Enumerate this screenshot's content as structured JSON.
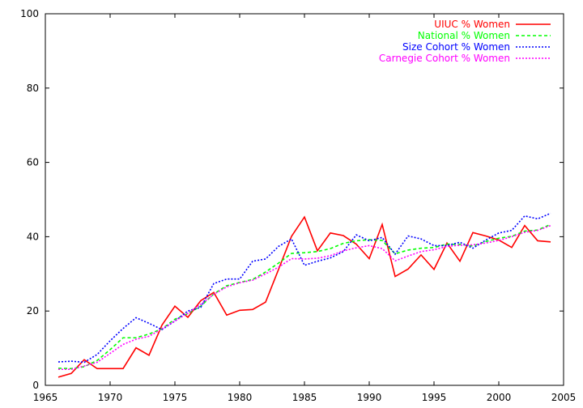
{
  "chart_data": {
    "type": "line",
    "title": "",
    "xlabel": "",
    "ylabel": "",
    "xlim": [
      1965,
      2005
    ],
    "ylim": [
      0,
      100
    ],
    "xticks": [
      "1965",
      "1970",
      "1975",
      "1980",
      "1985",
      "1990",
      "1995",
      "2000",
      "2005"
    ],
    "yticks": [
      "0",
      "20",
      "40",
      "60",
      "80",
      "100"
    ],
    "grid": false,
    "legend_position": "top-right",
    "x": [
      1966,
      1967,
      1968,
      1969,
      1970,
      1971,
      1972,
      1973,
      1974,
      1975,
      1976,
      1977,
      1978,
      1979,
      1980,
      1981,
      1982,
      1983,
      1984,
      1985,
      1986,
      1987,
      1988,
      1989,
      1990,
      1991,
      1992,
      1993,
      1994,
      1995,
      1996,
      1997,
      1998,
      1999,
      2000,
      2001,
      2002,
      2003,
      2004
    ],
    "series": [
      {
        "name": "UIUC % Women",
        "color": "#ff0000",
        "dash": "solid",
        "values": [
          2.2,
          3.2,
          6.9,
          4.5,
          4.5,
          4.5,
          10.1,
          8.1,
          16.2,
          21.3,
          18.3,
          22.8,
          25.0,
          18.9,
          20.2,
          20.4,
          22.4,
          31.2,
          40.1,
          45.3,
          36.2,
          41.0,
          40.3,
          38.0,
          34.1,
          43.3,
          29.3,
          31.3,
          35.1,
          31.2,
          38.3,
          33.4,
          41.1,
          40.2,
          39.1,
          37.1,
          43.0,
          38.9,
          38.6
        ]
      },
      {
        "name": "National % Women",
        "color": "#00ff00",
        "dash": "dashed",
        "values": [
          4.6,
          4.5,
          5.0,
          6.7,
          9.6,
          12.8,
          12.8,
          13.8,
          15.2,
          17.8,
          19.3,
          21.3,
          24.6,
          26.8,
          27.7,
          28.5,
          30.5,
          32.9,
          35.5,
          35.7,
          36.0,
          36.8,
          38.2,
          38.9,
          39.2,
          39.0,
          35.4,
          36.4,
          36.9,
          37.1,
          38.0,
          37.9,
          37.5,
          38.7,
          39.6,
          40.1,
          41.5,
          41.8,
          43.3
        ]
      },
      {
        "name": "Size Cohort % Women",
        "color": "#0000ff",
        "dash": "dotted",
        "values": [
          6.3,
          6.5,
          6.2,
          8.3,
          12.0,
          15.3,
          18.2,
          16.7,
          15.0,
          17.3,
          20.0,
          21.0,
          27.4,
          28.6,
          28.6,
          33.4,
          34.0,
          37.4,
          39.4,
          32.3,
          33.4,
          34.3,
          36.0,
          40.5,
          38.9,
          39.8,
          35.3,
          40.2,
          39.4,
          37.6,
          37.6,
          38.5,
          36.9,
          39.1,
          41.0,
          41.7,
          45.6,
          44.8,
          46.3
        ]
      },
      {
        "name": "Carnegie Cohort % Women",
        "color": "#ff00ff",
        "dash": "dotted",
        "values": [
          4.3,
          4.3,
          5.2,
          6.2,
          8.6,
          11.0,
          12.4,
          13.2,
          15.2,
          17.3,
          19.4,
          21.8,
          24.5,
          26.5,
          27.6,
          28.3,
          30.0,
          31.8,
          34.1,
          34.0,
          34.2,
          34.9,
          36.2,
          37.0,
          37.6,
          36.8,
          33.5,
          34.8,
          36.0,
          36.5,
          37.4,
          37.7,
          37.8,
          38.3,
          39.0,
          40.0,
          41.2,
          41.7,
          43.0
        ]
      }
    ]
  }
}
